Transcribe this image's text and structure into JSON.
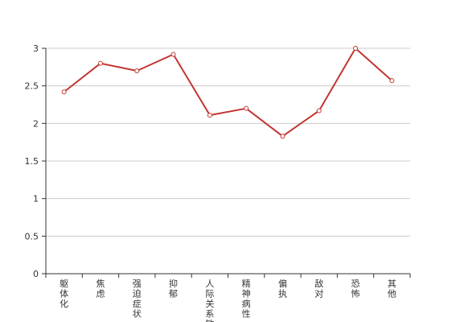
{
  "chart_data": {
    "type": "line",
    "title": "",
    "xlabel": "",
    "ylabel": "",
    "categories": [
      "躯体化",
      "焦虑",
      "强迫症状",
      "抑郁",
      "人际关系敏感",
      "精神病性",
      "偏执",
      "敌对",
      "恐怖",
      "其他"
    ],
    "series": [
      {
        "name": "",
        "values": [
          2.42,
          2.8,
          2.7,
          2.92,
          2.11,
          2.2,
          1.83,
          2.17,
          3.0,
          2.57
        ]
      }
    ],
    "ylim": [
      0,
      3
    ],
    "yticks": [
      "0",
      "0.5",
      "1",
      "1.5",
      "2",
      "2.5",
      "3"
    ],
    "grid": true,
    "legend": "none",
    "colors": {
      "line": "#c23531",
      "point_fill": "#ffffff",
      "grid": "#cccccc",
      "axis": "#333333"
    }
  }
}
